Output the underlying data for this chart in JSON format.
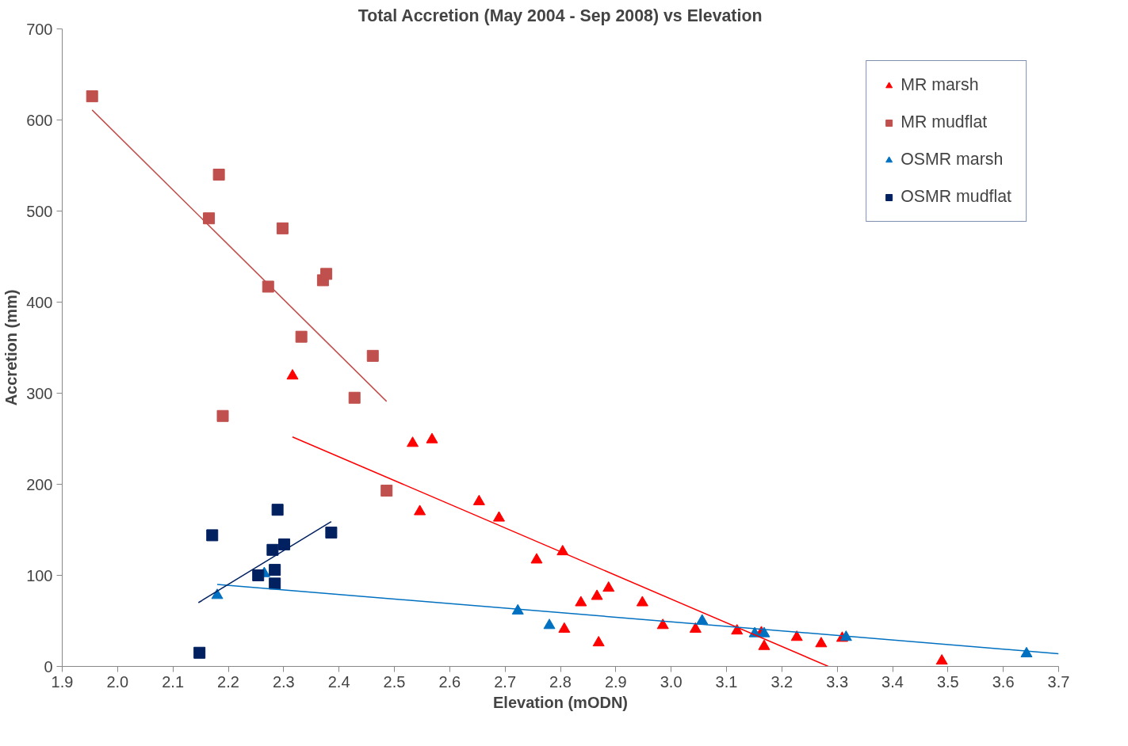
{
  "chart_data": {
    "type": "scatter",
    "title": "Total Accretion (May 2004 - Sep 2008) vs Elevation",
    "xlabel": "Elevation (mODN)",
    "ylabel": "Accretion (mm)",
    "xlim": [
      1.9,
      3.7
    ],
    "ylim": [
      0,
      700
    ],
    "xticks": [
      1.9,
      {
        "value": 2.0,
        "label": "2.0"
      },
      2.1,
      2.2,
      2.3,
      2.4,
      2.5,
      2.6,
      2.7,
      2.8,
      2.9,
      {
        "value": 3.0,
        "label": "3.0"
      },
      3.1,
      3.2,
      3.3,
      3.4,
      3.5,
      3.6,
      3.7
    ],
    "yticks": [
      0,
      100,
      200,
      300,
      400,
      500,
      600,
      700
    ],
    "grid": false,
    "legend": "top right",
    "series": [
      {
        "name": "MR marsh",
        "color": "#ff0000",
        "marker": "triangle",
        "x": [
          2.316,
          2.533,
          2.568,
          2.546,
          2.653,
          2.689,
          2.757,
          2.804,
          2.807,
          2.837,
          2.866,
          2.869,
          2.887,
          2.948,
          2.985,
          3.044,
          3.119,
          3.168,
          3.163,
          3.227,
          3.271,
          3.309,
          3.489
        ],
        "values": [
          319,
          245,
          249,
          170,
          181,
          163,
          117,
          126,
          41,
          70,
          77,
          26,
          86,
          70,
          45,
          41,
          39,
          22,
          37,
          32,
          25,
          31,
          6
        ]
      },
      {
        "name": "MR mudflat",
        "color": "#c0504d",
        "marker": "square",
        "x": [
          1.954,
          2.165,
          2.183,
          2.298,
          2.272,
          2.371,
          2.377,
          2.332,
          2.461,
          2.428,
          2.19,
          2.486
        ],
        "values": [
          626,
          492,
          540,
          481,
          417,
          424,
          431,
          362,
          341,
          295,
          275,
          193
        ]
      },
      {
        "name": "OSMR marsh",
        "color": "#0070c0",
        "marker": "triangle",
        "x": [
          2.18,
          2.265,
          2.723,
          2.78,
          3.056,
          3.151,
          3.168,
          3.316,
          3.642
        ],
        "values": [
          78,
          102,
          61,
          45,
          50,
          36,
          36,
          32,
          14
        ]
      },
      {
        "name": "OSMR mudflat",
        "color": "#002060",
        "marker": "square",
        "x": [
          2.148,
          2.171,
          2.289,
          2.254,
          2.28,
          2.301,
          2.284,
          2.284,
          2.386
        ],
        "values": [
          15,
          144,
          172,
          100,
          128,
          134,
          106,
          91,
          147
        ]
      },
      {
        "type": "line",
        "color": "#c0504d",
        "x": [
          1.954,
          2.486
        ],
        "values": [
          611,
          291
        ]
      },
      {
        "type": "line",
        "color": "#ff0000",
        "x": [
          2.316,
          3.284
        ],
        "values": [
          252,
          0
        ]
      },
      {
        "type": "line",
        "color": "#0070c0",
        "x": [
          2.18,
          3.7
        ],
        "values": [
          90,
          14
        ]
      },
      {
        "type": "line",
        "color": "#002060",
        "x": [
          2.146,
          2.386
        ],
        "values": [
          70,
          159
        ]
      }
    ]
  }
}
